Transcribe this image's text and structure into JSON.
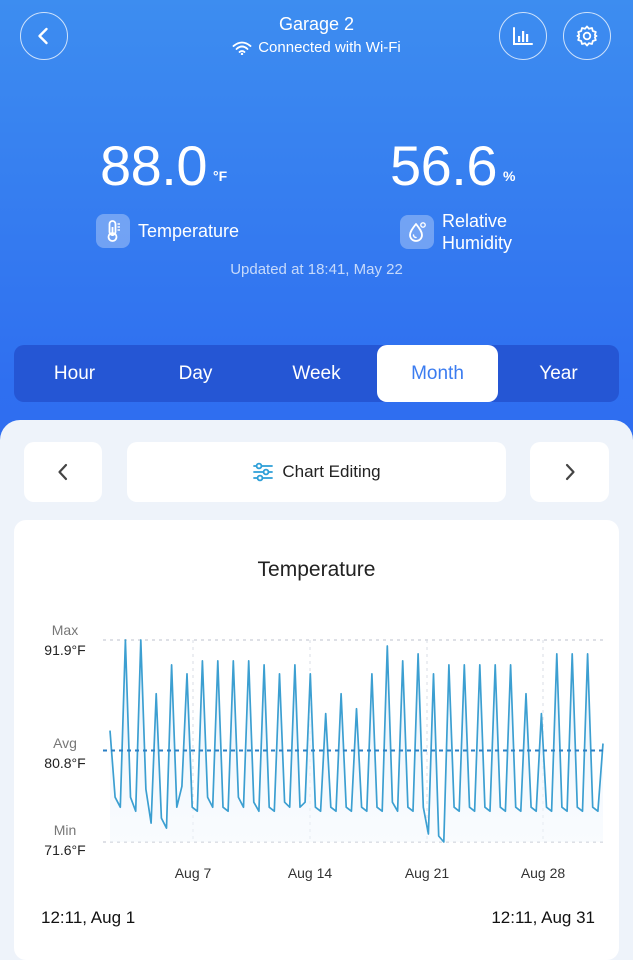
{
  "header": {
    "title": "Garage 2",
    "connection": "Connected with Wi-Fi"
  },
  "readings": {
    "temperature": {
      "value": "88.0",
      "unit": "°F",
      "label": "Temperature"
    },
    "humidity": {
      "value": "56.6",
      "unit": "%",
      "label_line1": "Relative",
      "label_line2": "Humidity"
    }
  },
  "updated": "Updated at 18:41,  May 22",
  "tabs": [
    {
      "label": "Hour",
      "active": false
    },
    {
      "label": "Day",
      "active": false
    },
    {
      "label": "Week",
      "active": false
    },
    {
      "label": "Month",
      "active": true
    },
    {
      "label": "Year",
      "active": false
    }
  ],
  "toolbar": {
    "chart_editing": "Chart Editing"
  },
  "chart_data": {
    "type": "line",
    "title": "Temperature",
    "stats": {
      "max_label": "Max",
      "max_value": "91.9°F",
      "avg_label": "Avg",
      "avg_value": "80.8°F",
      "min_label": "Min",
      "min_value": "71.6°F"
    },
    "ylim": [
      71.6,
      91.9
    ],
    "avg": 80.8,
    "x_ticks": [
      "Aug 7",
      "Aug 14",
      "Aug 21",
      "Aug 28"
    ],
    "range_start": "12:11,  Aug 1",
    "range_end": "12:11,   Aug 31",
    "series": [
      {
        "values": [
          82.8,
          76.1,
          75.1,
          91.9,
          76.1,
          74.7,
          91.9,
          76.9,
          73.5,
          86.5,
          74.0,
          73.0,
          89.4,
          75.1,
          77.2,
          88.5,
          75.1,
          74.7,
          89.8,
          76.1,
          75.1,
          89.8,
          75.1,
          74.7,
          89.8,
          76.1,
          75.1,
          89.8,
          75.6,
          74.7,
          89.4,
          75.1,
          74.7,
          88.5,
          75.6,
          75.1,
          89.4,
          75.1,
          75.6,
          88.5,
          75.1,
          74.7,
          84.5,
          75.1,
          74.7,
          86.5,
          75.1,
          74.7,
          85.0,
          75.1,
          74.7,
          88.5,
          75.1,
          74.7,
          91.3,
          75.6,
          74.7,
          89.8,
          75.1,
          74.7,
          90.5,
          75.1,
          72.4,
          88.5,
          72.2,
          71.6,
          89.4,
          75.1,
          74.7,
          89.4,
          75.1,
          74.7,
          89.4,
          75.1,
          74.7,
          89.4,
          75.1,
          74.7,
          89.4,
          75.1,
          74.7,
          86.5,
          75.1,
          74.7,
          84.5,
          75.1,
          74.7,
          90.5,
          75.1,
          74.7,
          90.5,
          75.1,
          74.7,
          90.5,
          75.1,
          74.7,
          81.5
        ]
      }
    ]
  }
}
